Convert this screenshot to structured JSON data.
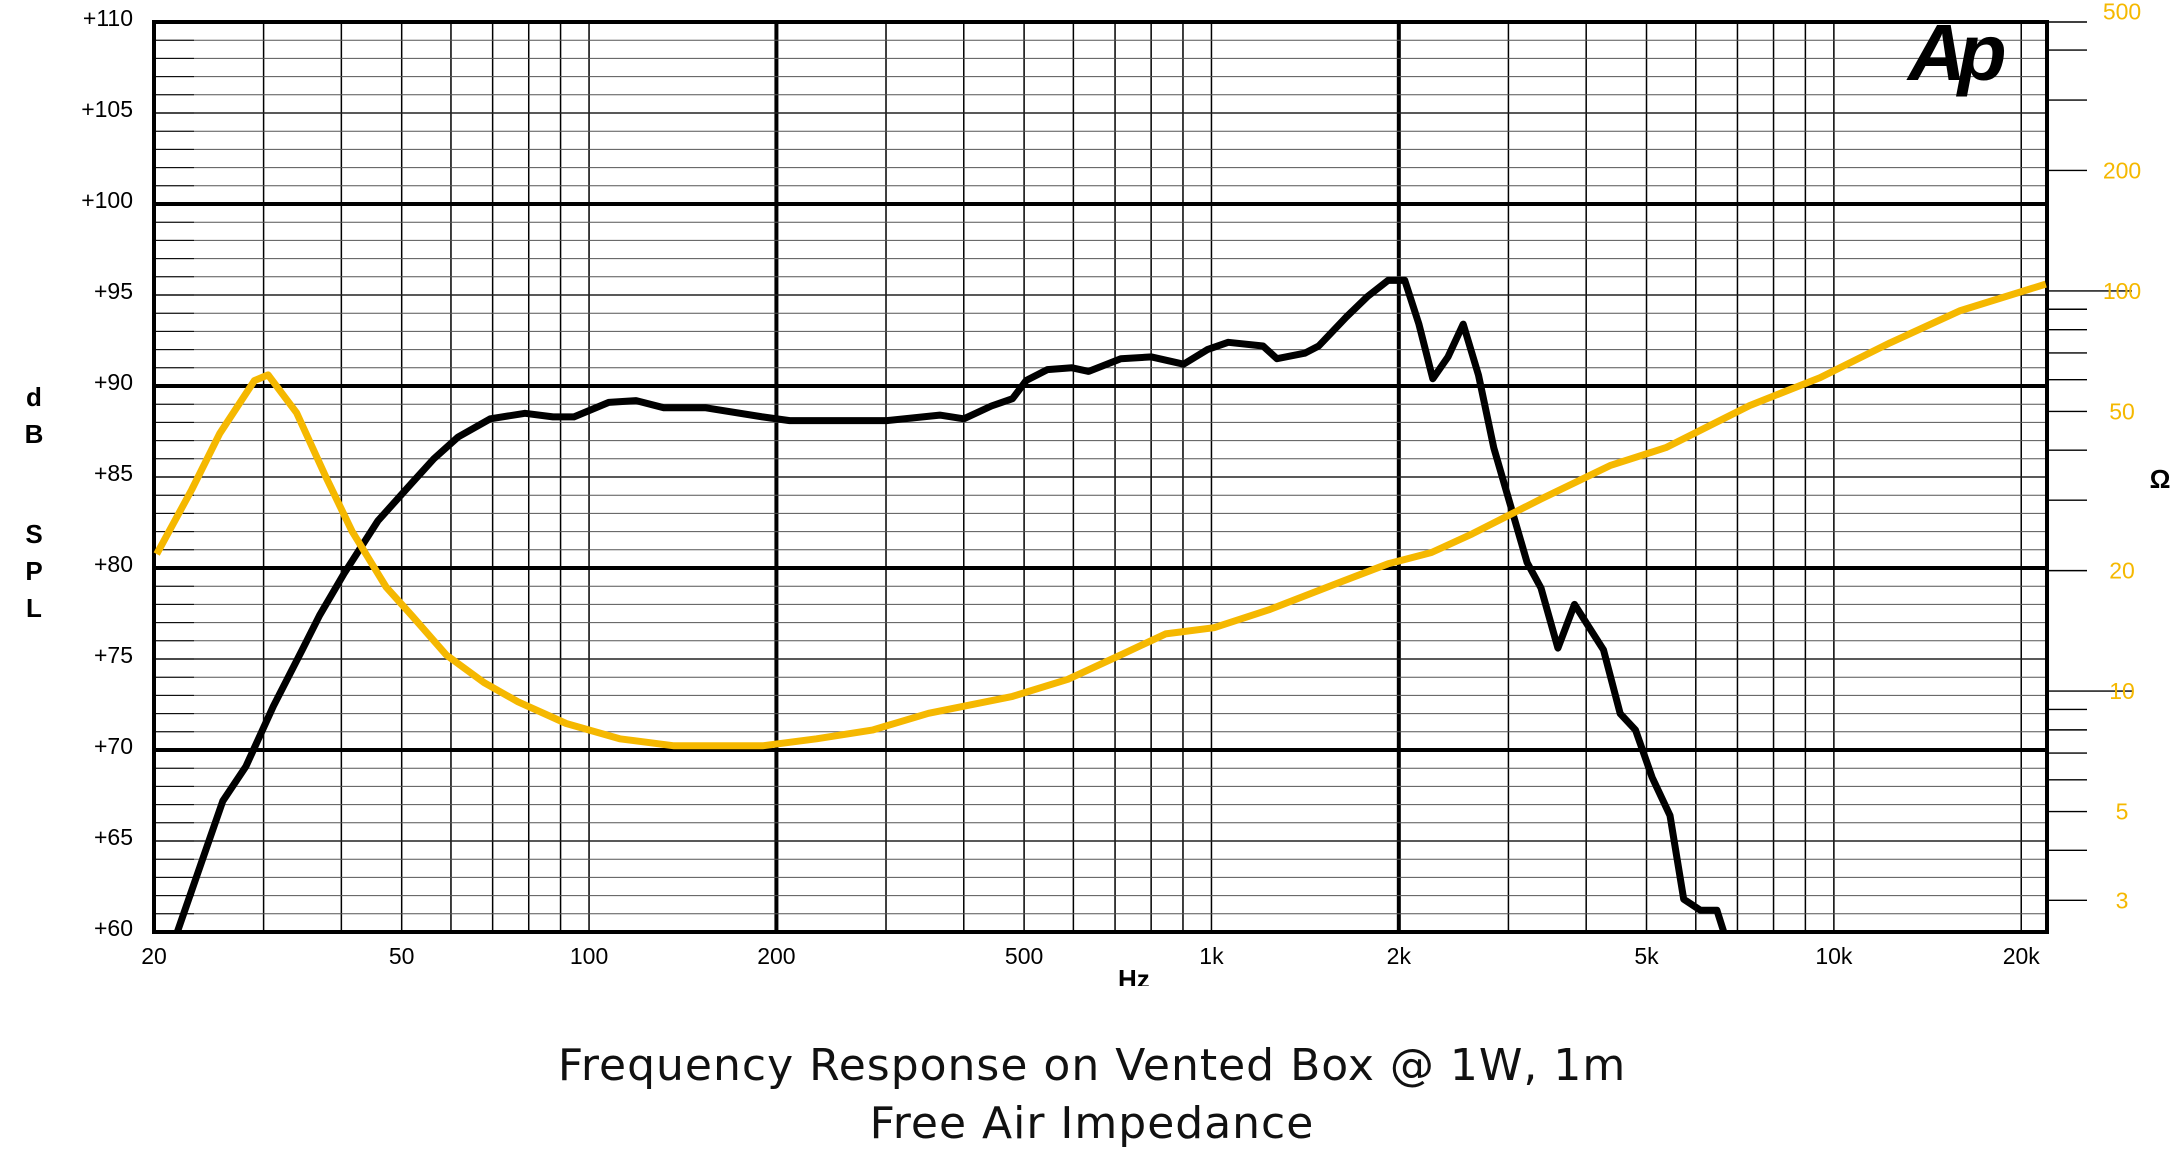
{
  "chart_data": {
    "type": "line",
    "title": "Frequency Response on  Vented Box @ 1W, 1m",
    "subtitle": "Free Air Impedance",
    "xlabel": "Hz",
    "ylabel": "dB SPL",
    "ylabel_letters": [
      "d",
      "B",
      "S",
      "P",
      "L"
    ],
    "y2label": "Ω",
    "logo": "Ap",
    "x_scale": "log",
    "xlim": [
      20,
      22000
    ],
    "ylim": [
      60,
      110
    ],
    "y2_scale": "log",
    "y2lim": [
      2.5,
      470
    ],
    "grid": true,
    "colors": {
      "spl": "#000000",
      "impedance": "#f5b800",
      "y2_text": "#f5b800"
    },
    "x_ticks": [
      {
        "value": 20,
        "label": "20"
      },
      {
        "value": 50,
        "label": "50"
      },
      {
        "value": 100,
        "label": "100"
      },
      {
        "value": 200,
        "label": "200"
      },
      {
        "value": 500,
        "label": "500"
      },
      {
        "value": 1000,
        "label": "1k"
      },
      {
        "value": 2000,
        "label": "2k"
      },
      {
        "value": 5000,
        "label": "5k"
      },
      {
        "value": 10000,
        "label": "10k"
      },
      {
        "value": 20000,
        "label": "20k"
      }
    ],
    "y_ticks": [
      {
        "value": 110,
        "label": "+110"
      },
      {
        "value": 105,
        "label": "+105"
      },
      {
        "value": 100,
        "label": "+100"
      },
      {
        "value": 95,
        "label": "+95"
      },
      {
        "value": 90,
        "label": "+90"
      },
      {
        "value": 85,
        "label": "+85"
      },
      {
        "value": 80,
        "label": "+80"
      },
      {
        "value": 75,
        "label": "+75"
      },
      {
        "value": 70,
        "label": "+70"
      },
      {
        "value": 65,
        "label": "+65"
      },
      {
        "value": 60,
        "label": "+60"
      }
    ],
    "y2_ticks": [
      {
        "value": 500,
        "label": "500"
      },
      {
        "value": 200,
        "label": "200"
      },
      {
        "value": 100,
        "label": "100"
      },
      {
        "value": 50,
        "label": "50"
      },
      {
        "value": 20,
        "label": "20"
      },
      {
        "value": 10,
        "label": "10"
      },
      {
        "value": 5,
        "label": "5"
      },
      {
        "value": 3,
        "label": "3"
      }
    ],
    "series": [
      {
        "id": "spl",
        "axis": "left",
        "x": [
          21.8,
          25.8,
          28.1,
          31.1,
          34.6,
          36.9,
          40.4,
          45.8,
          52,
          56.3,
          61.6,
          69.4,
          78.9,
          87.5,
          94.6,
          107.6,
          119,
          132,
          154,
          190,
          210,
          301,
          366,
          400,
          443,
          479,
          504,
          545,
          597,
          635,
          715,
          801,
          902,
          985,
          1064,
          1210,
          1274,
          1412,
          1487,
          1648,
          1779,
          1922,
          2045,
          2154,
          2268,
          2399,
          2538,
          2686,
          2842,
          3214,
          3384,
          3602,
          3831,
          4265,
          4537,
          4800,
          5104,
          5454,
          5738,
          6101,
          6488,
          6654
        ],
        "y": [
          60,
          67.2,
          69.1,
          72.4,
          75.5,
          77.4,
          79.7,
          82.6,
          84.7,
          86,
          87.2,
          88.2,
          88.5,
          88.3,
          88.3,
          89.1,
          89.2,
          88.8,
          88.8,
          88.3,
          88.1,
          88.1,
          88.4,
          88.2,
          88.9,
          89.3,
          90.3,
          90.9,
          91,
          90.8,
          91.5,
          91.6,
          91.2,
          92,
          92.4,
          92.2,
          91.5,
          91.8,
          92.2,
          93.8,
          94.9,
          95.8,
          95.8,
          93.4,
          90.4,
          91.6,
          93.4,
          90.6,
          86.6,
          80.3,
          78.9,
          75.6,
          78,
          75.5,
          72,
          71.1,
          68.5,
          66.4,
          61.8,
          61.2,
          61.2,
          60
        ]
      },
      {
        "id": "impedance",
        "axis": "right",
        "x": [
          20.2,
          23,
          25.5,
          29,
          30.5,
          33.9,
          37.7,
          41.6,
          47.2,
          52,
          59,
          67.8,
          76.9,
          91.9,
          112,
          137,
          190,
          232,
          286,
          351,
          479,
          588,
          722,
          844,
          1010,
          1242,
          1565,
          1922,
          2257,
          2623,
          3384,
          4369,
          5372,
          7319,
          9495,
          12315,
          15970,
          21900
        ],
        "y": [
          22,
          31.9,
          44,
          59.7,
          61.7,
          49.6,
          34.5,
          25.1,
          18.2,
          15.4,
          12.3,
          10.5,
          9.4,
          8.3,
          7.6,
          7.3,
          7.3,
          7.6,
          8,
          8.8,
          9.7,
          10.7,
          12.4,
          13.9,
          14.4,
          16,
          18.4,
          20.8,
          22.2,
          24.7,
          30.2,
          36.6,
          40.6,
          51.7,
          60.7,
          74.2,
          89.3,
          104
        ]
      }
    ]
  }
}
